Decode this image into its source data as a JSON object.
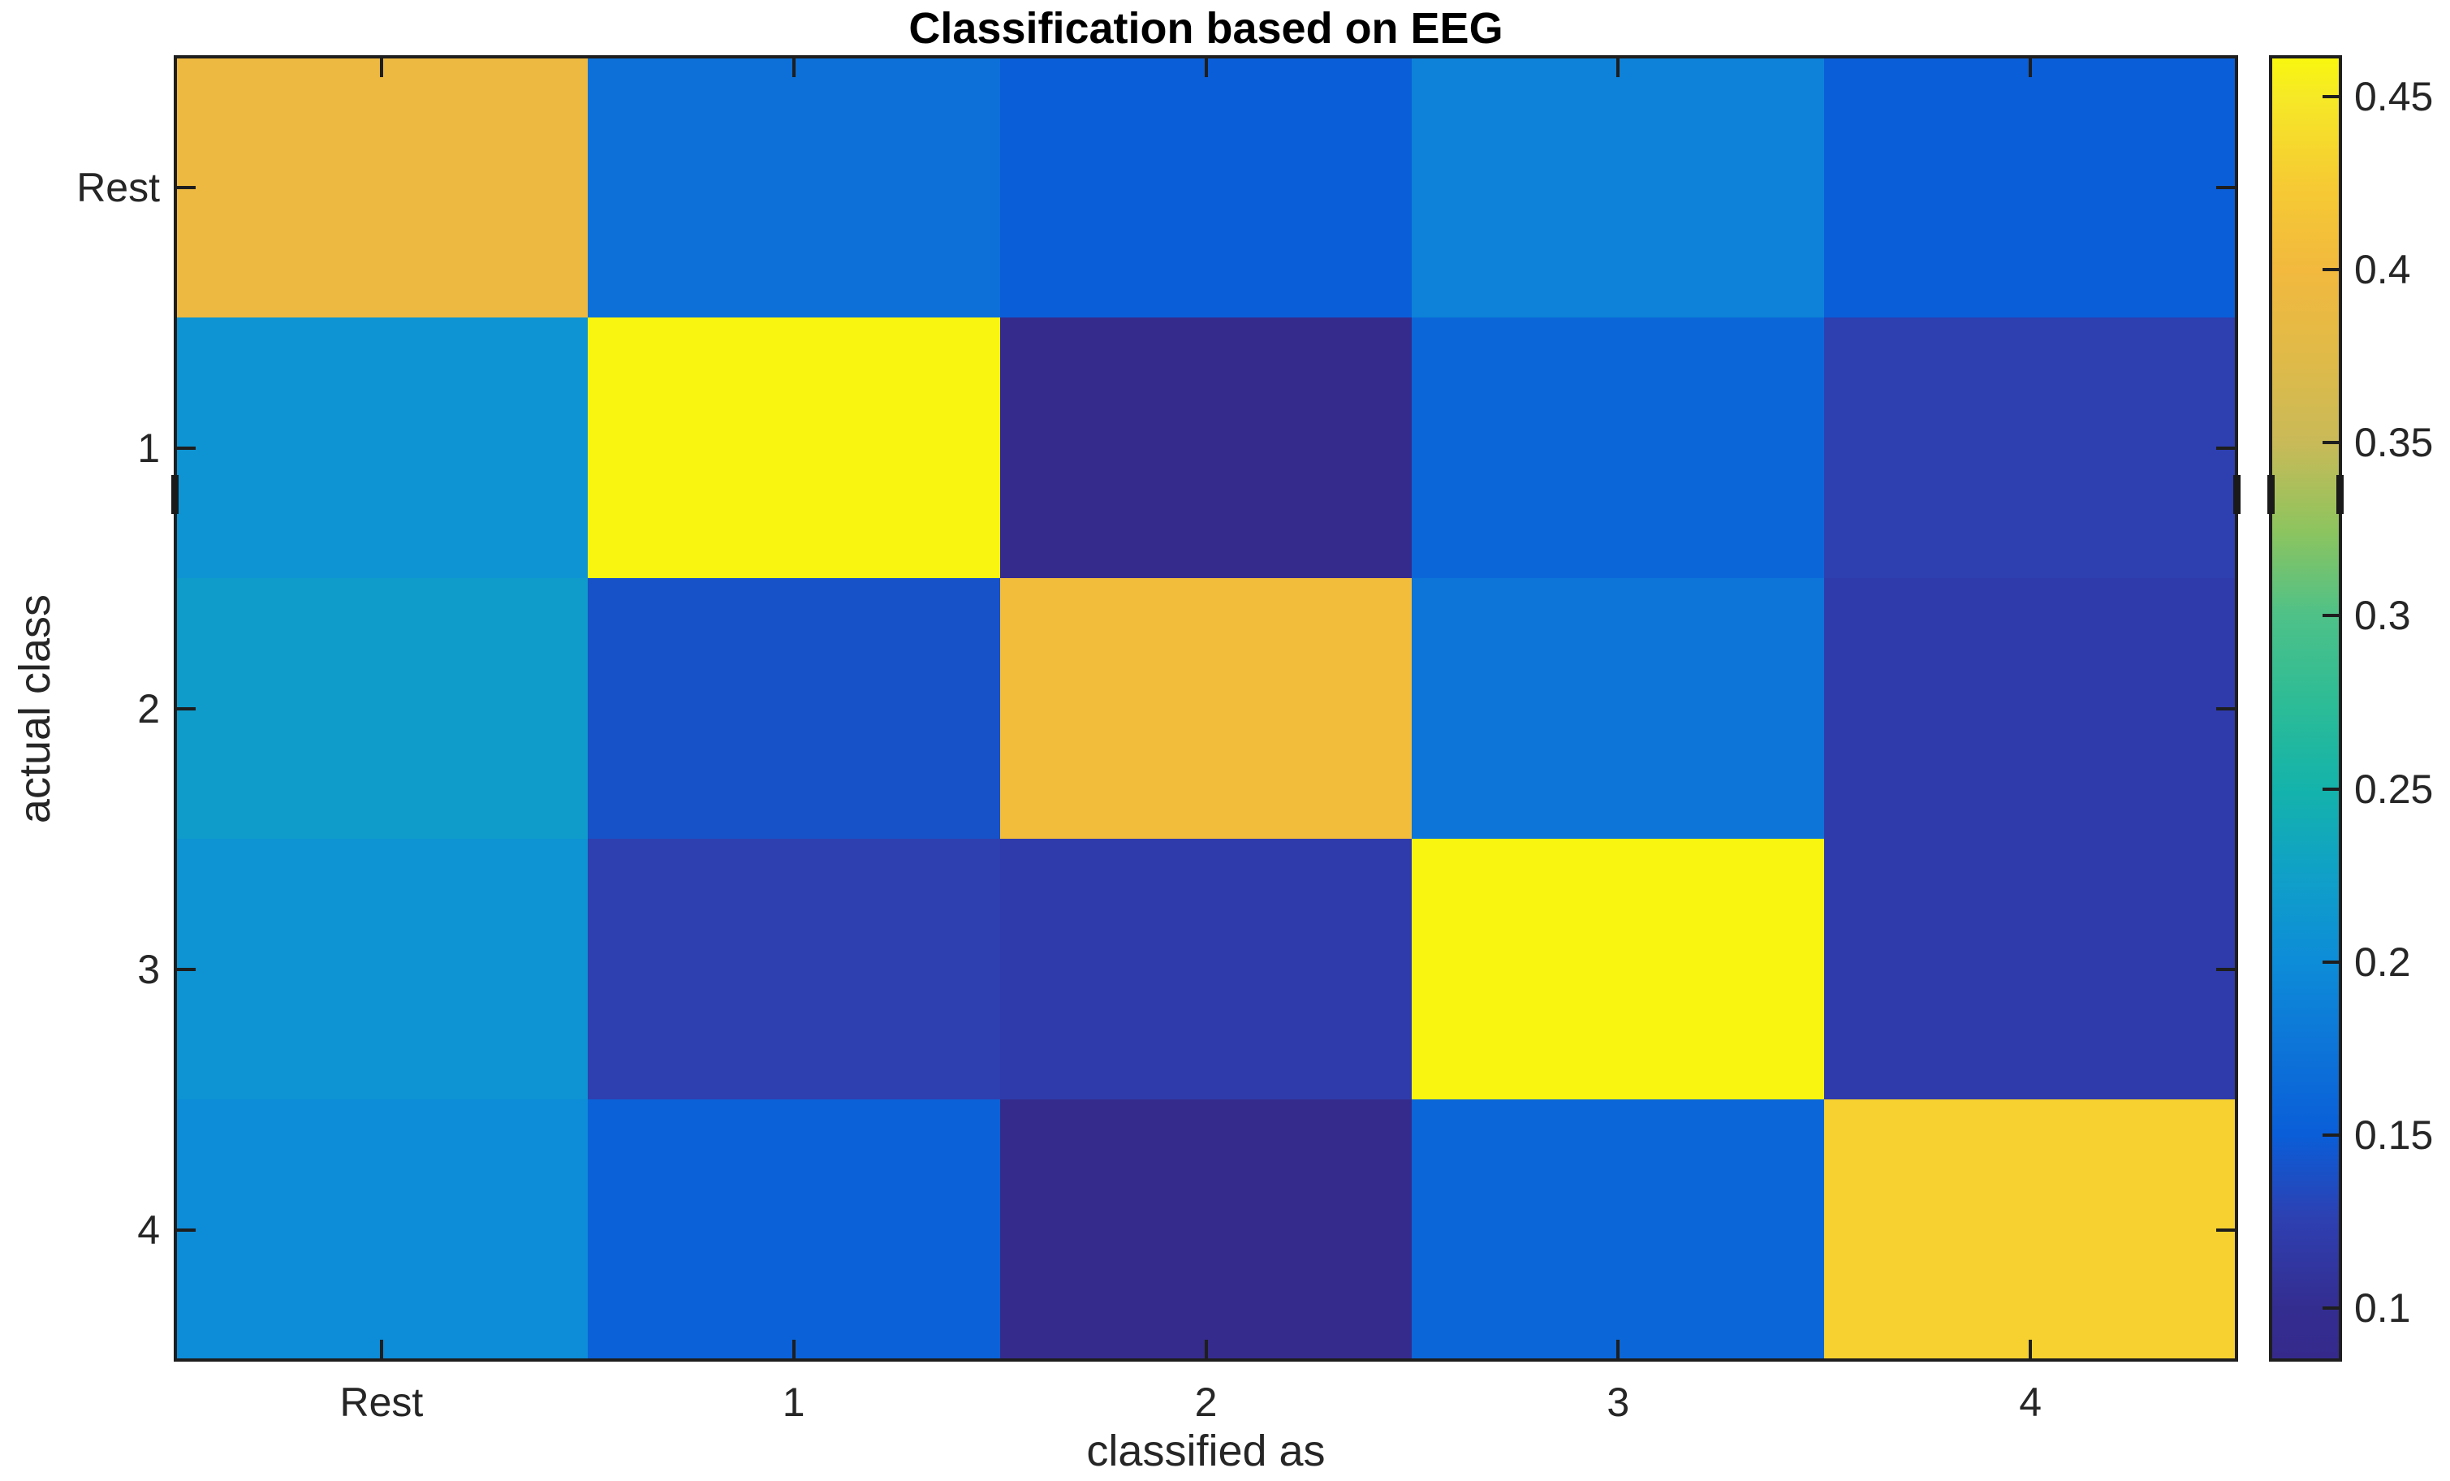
{
  "chart_data": {
    "type": "heatmap",
    "title": "Classification based on EEG",
    "xlabel": "classified as",
    "ylabel": "actual class",
    "x_categories": [
      "Rest",
      "1",
      "2",
      "3",
      "4"
    ],
    "y_categories": [
      "Rest",
      "1",
      "2",
      "3",
      "4"
    ],
    "values": [
      [
        0.395,
        0.17,
        0.15,
        0.19,
        0.15
      ],
      [
        0.21,
        0.46,
        0.09,
        0.16,
        0.125
      ],
      [
        0.22,
        0.14,
        0.405,
        0.175,
        0.12
      ],
      [
        0.21,
        0.125,
        0.12,
        0.46,
        0.12
      ],
      [
        0.2,
        0.155,
        0.09,
        0.16,
        0.43
      ]
    ],
    "value_range": [
      0.085,
      0.4615
    ],
    "grid": false,
    "legend": false,
    "colorbar": {
      "position": "right",
      "tick_values": [
        0.45,
        0.4,
        0.35,
        0.3,
        0.25,
        0.2,
        0.15,
        0.1
      ],
      "tick_labels": [
        "0.45",
        "0.4",
        "0.35",
        "0.3",
        "0.25",
        "0.2",
        "0.15",
        "0.1"
      ]
    },
    "colormap": {
      "name": "parula",
      "stops": [
        [
          0.085,
          "#352a8c"
        ],
        [
          0.1,
          "#342d90"
        ],
        [
          0.125,
          "#2e3fb0"
        ],
        [
          0.15,
          "#0a5ed8"
        ],
        [
          0.175,
          "#0d74d8"
        ],
        [
          0.2,
          "#0d8cd8"
        ],
        [
          0.225,
          "#10a0c8"
        ],
        [
          0.25,
          "#14b3ab"
        ],
        [
          0.275,
          "#2dbc96"
        ],
        [
          0.3,
          "#4ec188"
        ],
        [
          0.325,
          "#8ec45e"
        ],
        [
          0.35,
          "#c9ba58"
        ],
        [
          0.375,
          "#e0ba48"
        ],
        [
          0.4,
          "#f2b93e"
        ],
        [
          0.425,
          "#f6cb33"
        ],
        [
          0.45,
          "#f6e926"
        ],
        [
          0.4615,
          "#f9f70e"
        ]
      ]
    }
  },
  "style": {
    "background": "#ffffff",
    "axis_color": "#1e1e1e",
    "label_color": "#262626",
    "title_color": "#000000"
  }
}
